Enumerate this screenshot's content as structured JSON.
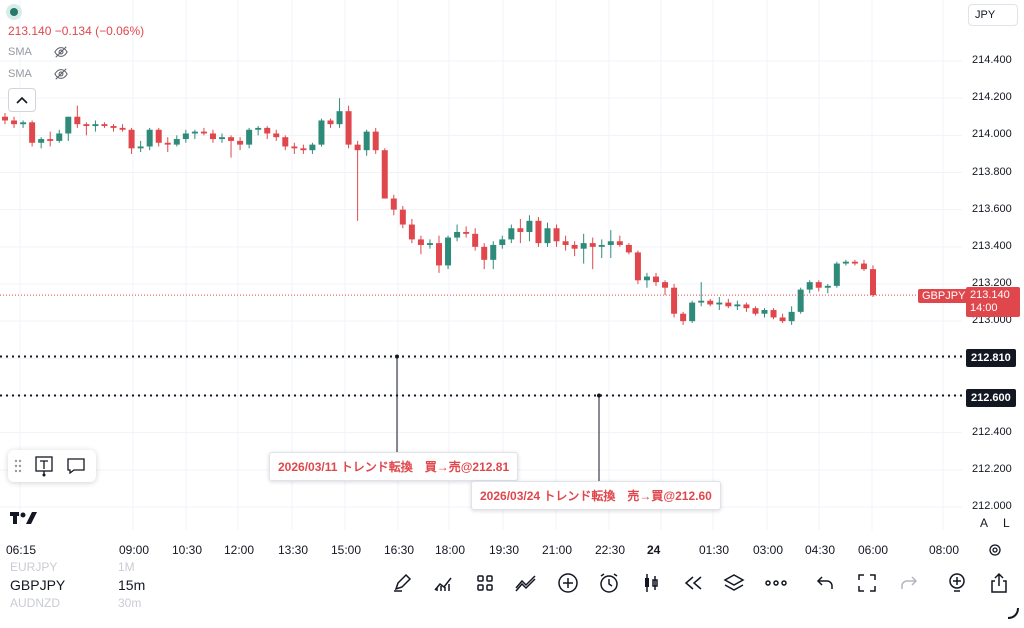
{
  "header": {
    "price_line": "213.140 −0.134 (−0.06%)",
    "indicators": [
      "SMA",
      "SMA"
    ],
    "currency_button": "JPY"
  },
  "y_axis": {
    "ticks": [
      "214.400",
      "214.200",
      "214.000",
      "213.800",
      "213.600",
      "213.400",
      "213.200",
      "213.000",
      "212.800",
      "212.600",
      "212.400",
      "212.200",
      "212.000"
    ],
    "level_badges": [
      "212.810",
      "212.600"
    ],
    "current_symbol": "GBPJPY",
    "current_price": "213.140",
    "current_countdown": "14:00"
  },
  "x_axis": {
    "ticks": [
      "06:15",
      "09:00",
      "10:30",
      "12:00",
      "13:30",
      "15:00",
      "16:30",
      "18:00",
      "19:30",
      "21:00",
      "22:30",
      "24",
      "01:30",
      "03:00",
      "04:30",
      "06:00",
      "08:00"
    ]
  },
  "annotations": {
    "note1": "2026/03/11 トレンド転換　買→売@212.81",
    "note2": "2026/03/24 トレンド転換　売→買@212.60"
  },
  "bottom_bar": {
    "symbol": "GBPJPY",
    "interval": "15m",
    "prev_symbol": "EURJPY",
    "prev_interval": "1M",
    "next_symbol": "AUDNZD",
    "next_interval": "30m",
    "scale_auto": "A",
    "scale_log": "L",
    "toolbar_icons": [
      "pen-icon",
      "indicators-icon",
      "templates-icon",
      "compare-icon",
      "add-icon",
      "alert-icon",
      "candle-type-icon",
      "replay-icon",
      "layers-icon",
      "more-icon",
      "undo-icon",
      "fullscreen-icon",
      "redo-icon",
      "idea-icon",
      "share-icon"
    ]
  },
  "colors": {
    "up": "#26a69a",
    "up_body": "#2e8b79",
    "down": "#e0474c",
    "level": "#131722"
  },
  "chart_data": {
    "type": "candlestick",
    "title": "",
    "symbol": "GBPJPY",
    "interval": "15m",
    "ylim": [
      211.98,
      214.52
    ],
    "horizontal_levels": [
      212.81,
      212.6
    ],
    "current_price": 213.14,
    "candles": [
      [
        214.1,
        214.12,
        214.06,
        214.08
      ],
      [
        214.08,
        214.1,
        214.04,
        214.06
      ],
      [
        214.06,
        214.08,
        214.04,
        214.07
      ],
      [
        214.07,
        214.08,
        213.94,
        213.96
      ],
      [
        213.96,
        213.99,
        213.93,
        213.98
      ],
      [
        213.98,
        214.02,
        213.94,
        213.97
      ],
      [
        213.97,
        214.03,
        213.96,
        214.01
      ],
      [
        214.01,
        214.1,
        213.97,
        214.1
      ],
      [
        214.1,
        214.16,
        214.04,
        214.06
      ],
      [
        214.06,
        214.07,
        214.0,
        214.05
      ],
      [
        214.05,
        214.08,
        214.02,
        214.06
      ],
      [
        214.06,
        214.07,
        214.04,
        214.05
      ],
      [
        214.05,
        214.06,
        214.02,
        214.04
      ],
      [
        214.04,
        214.06,
        214.02,
        214.03
      ],
      [
        214.03,
        214.04,
        213.9,
        213.93
      ],
      [
        213.93,
        213.97,
        213.91,
        213.94
      ],
      [
        213.94,
        214.04,
        213.92,
        214.03
      ],
      [
        214.03,
        214.04,
        213.94,
        213.96
      ],
      [
        213.96,
        213.99,
        213.91,
        213.95
      ],
      [
        213.95,
        214.0,
        213.94,
        213.98
      ],
      [
        213.98,
        214.03,
        213.96,
        214.01
      ],
      [
        214.01,
        214.03,
        213.98,
        214.02
      ],
      [
        214.02,
        214.04,
        214.0,
        214.01
      ],
      [
        214.01,
        214.03,
        213.96,
        213.98
      ],
      [
        213.98,
        214.01,
        213.96,
        213.99
      ],
      [
        213.99,
        214.0,
        213.88,
        213.97
      ],
      [
        213.97,
        213.99,
        213.92,
        213.95
      ],
      [
        213.95,
        214.04,
        213.93,
        214.03
      ],
      [
        214.03,
        214.05,
        214.0,
        214.04
      ],
      [
        214.04,
        214.05,
        213.98,
        214.01
      ],
      [
        214.01,
        214.03,
        213.97,
        213.99
      ],
      [
        213.99,
        214.0,
        213.92,
        213.94
      ],
      [
        213.94,
        213.96,
        213.9,
        213.93
      ],
      [
        213.93,
        213.95,
        213.9,
        213.92
      ],
      [
        213.92,
        213.96,
        213.9,
        213.95
      ],
      [
        213.95,
        214.09,
        213.94,
        214.08
      ],
      [
        214.08,
        214.09,
        214.04,
        214.06
      ],
      [
        214.06,
        214.2,
        214.04,
        214.13
      ],
      [
        214.13,
        214.16,
        213.93,
        213.95
      ],
      [
        213.95,
        213.97,
        213.54,
        213.92
      ],
      [
        213.92,
        214.03,
        213.89,
        214.02
      ],
      [
        214.02,
        214.04,
        213.9,
        213.92
      ],
      [
        213.92,
        213.93,
        213.66,
        213.66
      ],
      [
        213.66,
        213.68,
        213.57,
        213.6
      ],
      [
        213.6,
        213.62,
        213.5,
        213.52
      ],
      [
        213.52,
        213.55,
        213.42,
        213.44
      ],
      [
        213.44,
        213.46,
        213.36,
        213.41
      ],
      [
        213.41,
        213.44,
        213.39,
        213.42
      ],
      [
        213.42,
        213.46,
        213.26,
        213.3
      ],
      [
        213.3,
        213.46,
        213.28,
        213.45
      ],
      [
        213.45,
        213.52,
        213.43,
        213.48
      ],
      [
        213.48,
        213.51,
        213.45,
        213.47
      ],
      [
        213.47,
        213.5,
        213.38,
        213.4
      ],
      [
        213.4,
        213.42,
        213.28,
        213.33
      ],
      [
        213.33,
        213.43,
        213.28,
        213.41
      ],
      [
        213.41,
        213.46,
        213.39,
        213.44
      ],
      [
        213.44,
        213.52,
        213.42,
        213.5
      ],
      [
        213.5,
        213.55,
        213.42,
        213.48
      ],
      [
        213.48,
        213.57,
        213.43,
        213.54
      ],
      [
        213.54,
        213.56,
        213.4,
        213.42
      ],
      [
        213.42,
        213.53,
        213.4,
        213.5
      ],
      [
        213.5,
        213.52,
        213.4,
        213.43
      ],
      [
        213.43,
        213.46,
        213.38,
        213.41
      ],
      [
        213.41,
        213.43,
        213.35,
        213.39
      ],
      [
        213.39,
        213.47,
        213.31,
        213.42
      ],
      [
        213.42,
        213.45,
        213.28,
        213.4
      ],
      [
        213.4,
        213.44,
        213.34,
        213.41
      ],
      [
        213.41,
        213.49,
        213.34,
        213.43
      ],
      [
        213.43,
        213.46,
        213.4,
        213.41
      ],
      [
        213.41,
        213.42,
        213.36,
        213.37
      ],
      [
        213.37,
        213.38,
        213.2,
        213.22
      ],
      [
        213.22,
        213.26,
        213.18,
        213.24
      ],
      [
        213.24,
        213.26,
        213.19,
        213.21
      ],
      [
        213.21,
        213.22,
        213.14,
        213.18
      ],
      [
        213.18,
        213.2,
        213.02,
        213.04
      ],
      [
        213.04,
        213.05,
        212.98,
        213.0
      ],
      [
        213.0,
        213.11,
        212.99,
        213.1
      ],
      [
        213.1,
        213.21,
        213.08,
        213.11
      ],
      [
        213.11,
        213.12,
        213.08,
        213.09
      ],
      [
        213.09,
        213.13,
        213.06,
        213.1
      ],
      [
        213.1,
        213.12,
        213.07,
        213.08
      ],
      [
        213.08,
        213.11,
        213.06,
        213.09
      ],
      [
        213.09,
        213.1,
        213.05,
        213.07
      ],
      [
        213.07,
        213.08,
        213.03,
        213.04
      ],
      [
        213.04,
        213.07,
        213.02,
        213.06
      ],
      [
        213.06,
        213.07,
        213.01,
        213.02
      ],
      [
        213.02,
        213.04,
        212.99,
        213.0
      ],
      [
        213.0,
        213.08,
        212.98,
        213.05
      ],
      [
        213.05,
        213.18,
        213.04,
        213.17
      ],
      [
        213.17,
        213.22,
        213.15,
        213.21
      ],
      [
        213.21,
        213.22,
        213.16,
        213.18
      ],
      [
        213.18,
        213.2,
        213.15,
        213.19
      ],
      [
        213.19,
        213.32,
        213.18,
        213.31
      ],
      [
        213.31,
        213.33,
        213.3,
        213.32
      ],
      [
        213.32,
        213.33,
        213.3,
        213.31
      ],
      [
        213.31,
        213.33,
        213.27,
        213.28
      ],
      [
        213.28,
        213.3,
        213.13,
        213.14
      ]
    ]
  }
}
